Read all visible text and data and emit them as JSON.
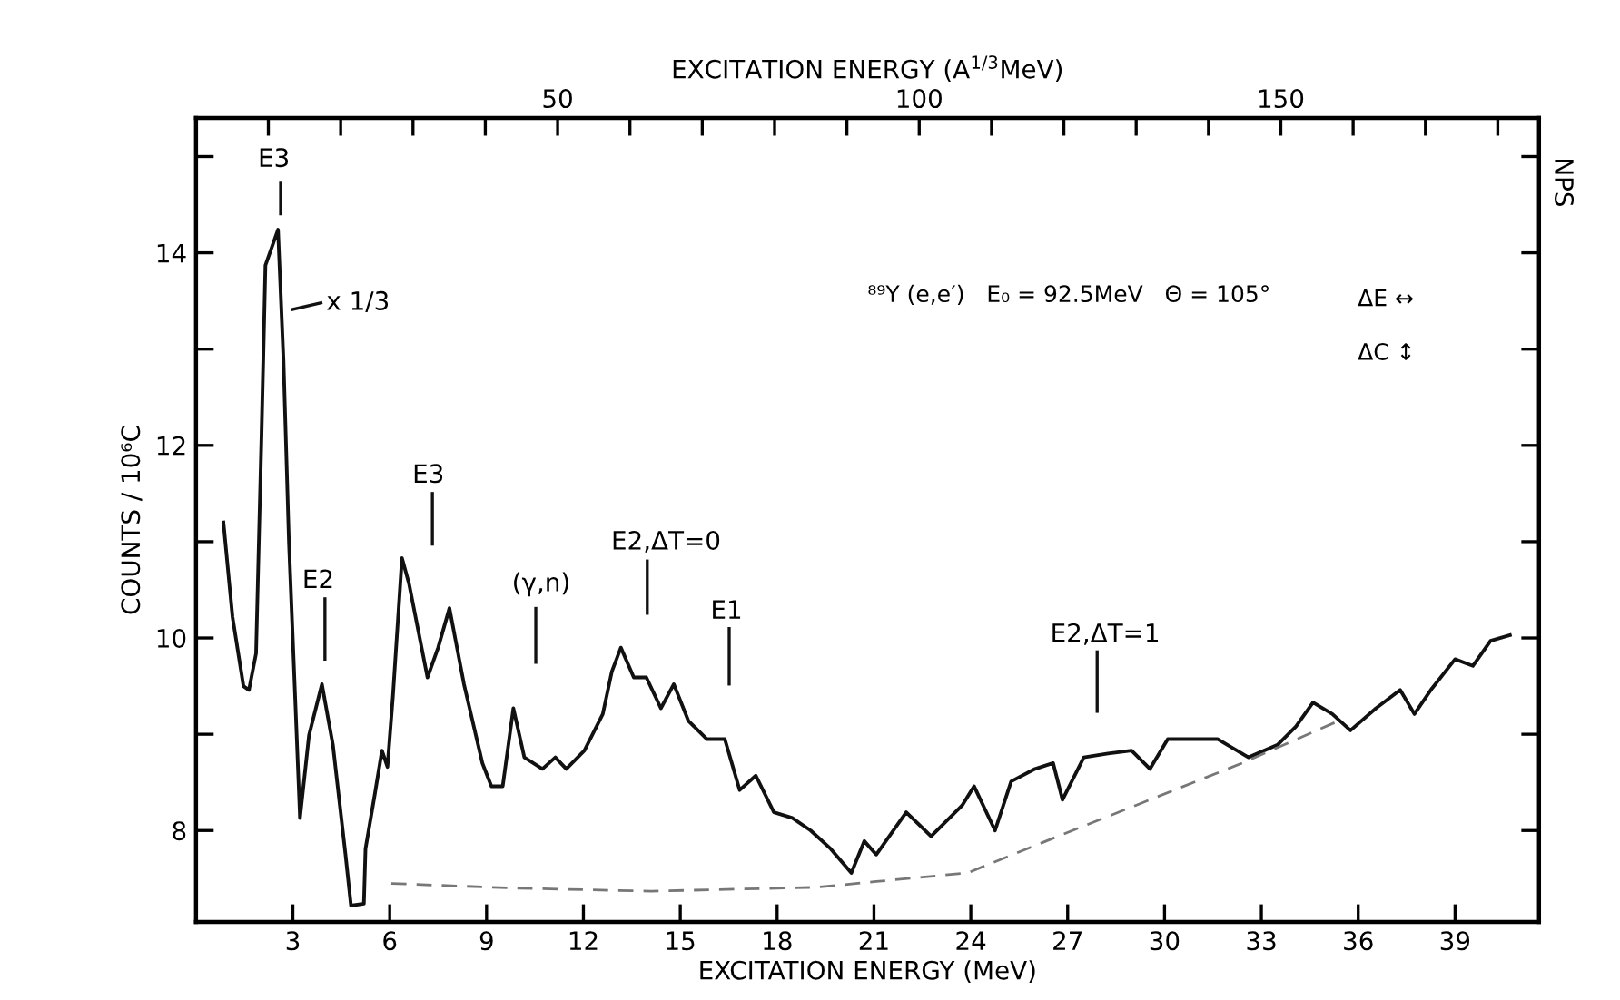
{
  "chart_data": {
    "type": "line",
    "xlabel": "EXCITATION ENERGY (MeV)",
    "x2label": "EXCITATION ENERGY (A$^{1/3}$MeV)",
    "ylabel": "COUNTS / 10⁶C",
    "xlim": [
      0,
      41.6
    ],
    "xticks": [
      3,
      6,
      9,
      12,
      15,
      18,
      21,
      24,
      27,
      30,
      33,
      36,
      39
    ],
    "x2lim": [
      0,
      185.7
    ],
    "x2ticks": [
      {
        "value": 10,
        "label": null
      },
      {
        "value": 20,
        "label": null
      },
      {
        "value": 30,
        "label": null
      },
      {
        "value": 40,
        "label": null
      },
      50,
      {
        "value": 60,
        "label": null
      },
      {
        "value": 70,
        "label": null
      },
      {
        "value": 80,
        "label": null
      },
      {
        "value": 90,
        "label": null
      },
      100,
      {
        "value": 110,
        "label": null
      },
      {
        "value": 120,
        "label": null
      },
      {
        "value": 130,
        "label": null
      },
      {
        "value": 140,
        "label": null
      },
      150,
      {
        "value": 160,
        "label": null
      },
      {
        "value": 170,
        "label": null
      },
      {
        "value": 180,
        "label": null
      }
    ],
    "ylim": [
      7.05,
      15.4
    ],
    "yticks": [
      8,
      {
        "value": 9,
        "label": null
      },
      10,
      {
        "value": 11,
        "label": null
      },
      12,
      {
        "value": 13,
        "label": null
      },
      14,
      {
        "value": 15,
        "label": null
      }
    ],
    "grid": false,
    "legend": false,
    "marker": "none",
    "series": [
      {
        "color": "#111111",
        "line_style": "solid",
        "x": [
          0.85,
          1.13,
          1.47,
          1.64,
          1.86,
          2.03,
          2.15,
          2.54,
          2.71,
          2.88,
          3.22,
          3.5,
          3.9,
          4.24,
          4.63,
          4.8,
          5.2,
          5.25,
          5.54,
          5.76,
          5.93,
          6.1,
          6.38,
          6.6,
          7.17,
          7.5,
          7.85,
          8.3,
          8.87,
          9.15,
          9.5,
          9.83,
          10.17,
          10.73,
          11.13,
          11.47,
          12.03,
          12.6,
          12.88,
          13.16,
          13.56,
          13.95,
          14.4,
          14.8,
          15.25,
          15.82,
          16.38,
          16.84,
          17.34,
          17.9,
          18.47,
          19.04,
          19.66,
          20.3,
          20.7,
          21.07,
          22.0,
          22.77,
          23.73,
          24.1,
          24.75,
          25.25,
          25.99,
          26.55,
          26.84,
          27.5,
          28.25,
          28.98,
          29.55,
          30.1,
          30.9,
          31.64,
          32.6,
          33.5,
          34.07,
          34.6,
          35.2,
          35.76,
          36.55,
          37.3,
          37.74,
          38.25,
          39.0,
          39.55,
          40.1,
          40.7
        ],
        "values": [
          11.2,
          10.22,
          9.5,
          9.46,
          9.84,
          12.12,
          13.87,
          14.24,
          12.88,
          10.98,
          8.13,
          8.99,
          9.52,
          8.89,
          7.75,
          7.22,
          7.24,
          7.81,
          8.38,
          8.83,
          8.66,
          9.4,
          10.83,
          10.56,
          9.59,
          9.9,
          10.31,
          9.52,
          8.7,
          8.46,
          8.46,
          9.27,
          8.76,
          8.64,
          8.76,
          8.64,
          8.83,
          9.21,
          9.65,
          9.9,
          9.59,
          9.59,
          9.27,
          9.52,
          9.14,
          8.95,
          8.95,
          8.42,
          8.57,
          8.19,
          8.13,
          8.0,
          7.81,
          7.56,
          7.89,
          7.75,
          8.19,
          7.94,
          8.26,
          8.46,
          8.0,
          8.51,
          8.64,
          8.7,
          8.32,
          8.76,
          8.8,
          8.83,
          8.64,
          8.95,
          8.95,
          8.95,
          8.76,
          8.89,
          9.08,
          9.33,
          9.21,
          9.04,
          9.27,
          9.46,
          9.21,
          9.46,
          9.78,
          9.71,
          9.97,
          10.03
        ]
      },
      {
        "color": "#777777",
        "line_style": "dashed",
        "x": [
          6.05,
          10.0,
          14.1,
          19.2,
          21.07,
          23.9,
          26.7,
          29.55,
          32.4,
          35.4
        ],
        "values": [
          7.45,
          7.4,
          7.37,
          7.41,
          7.47,
          7.56,
          7.94,
          8.32,
          8.7,
          9.14
        ]
      }
    ],
    "annotations": [
      "E3",
      "E2",
      "E3",
      "(γ,n)",
      "E2,ΔT=0",
      "E1",
      "E2,ΔT=1",
      "x 1/3",
      "⁸⁹Y (e,e′)   E₀ = 92.5MeV   Θ = 105°",
      "ΔE ↔",
      "ΔC ↕",
      "NPS"
    ]
  }
}
